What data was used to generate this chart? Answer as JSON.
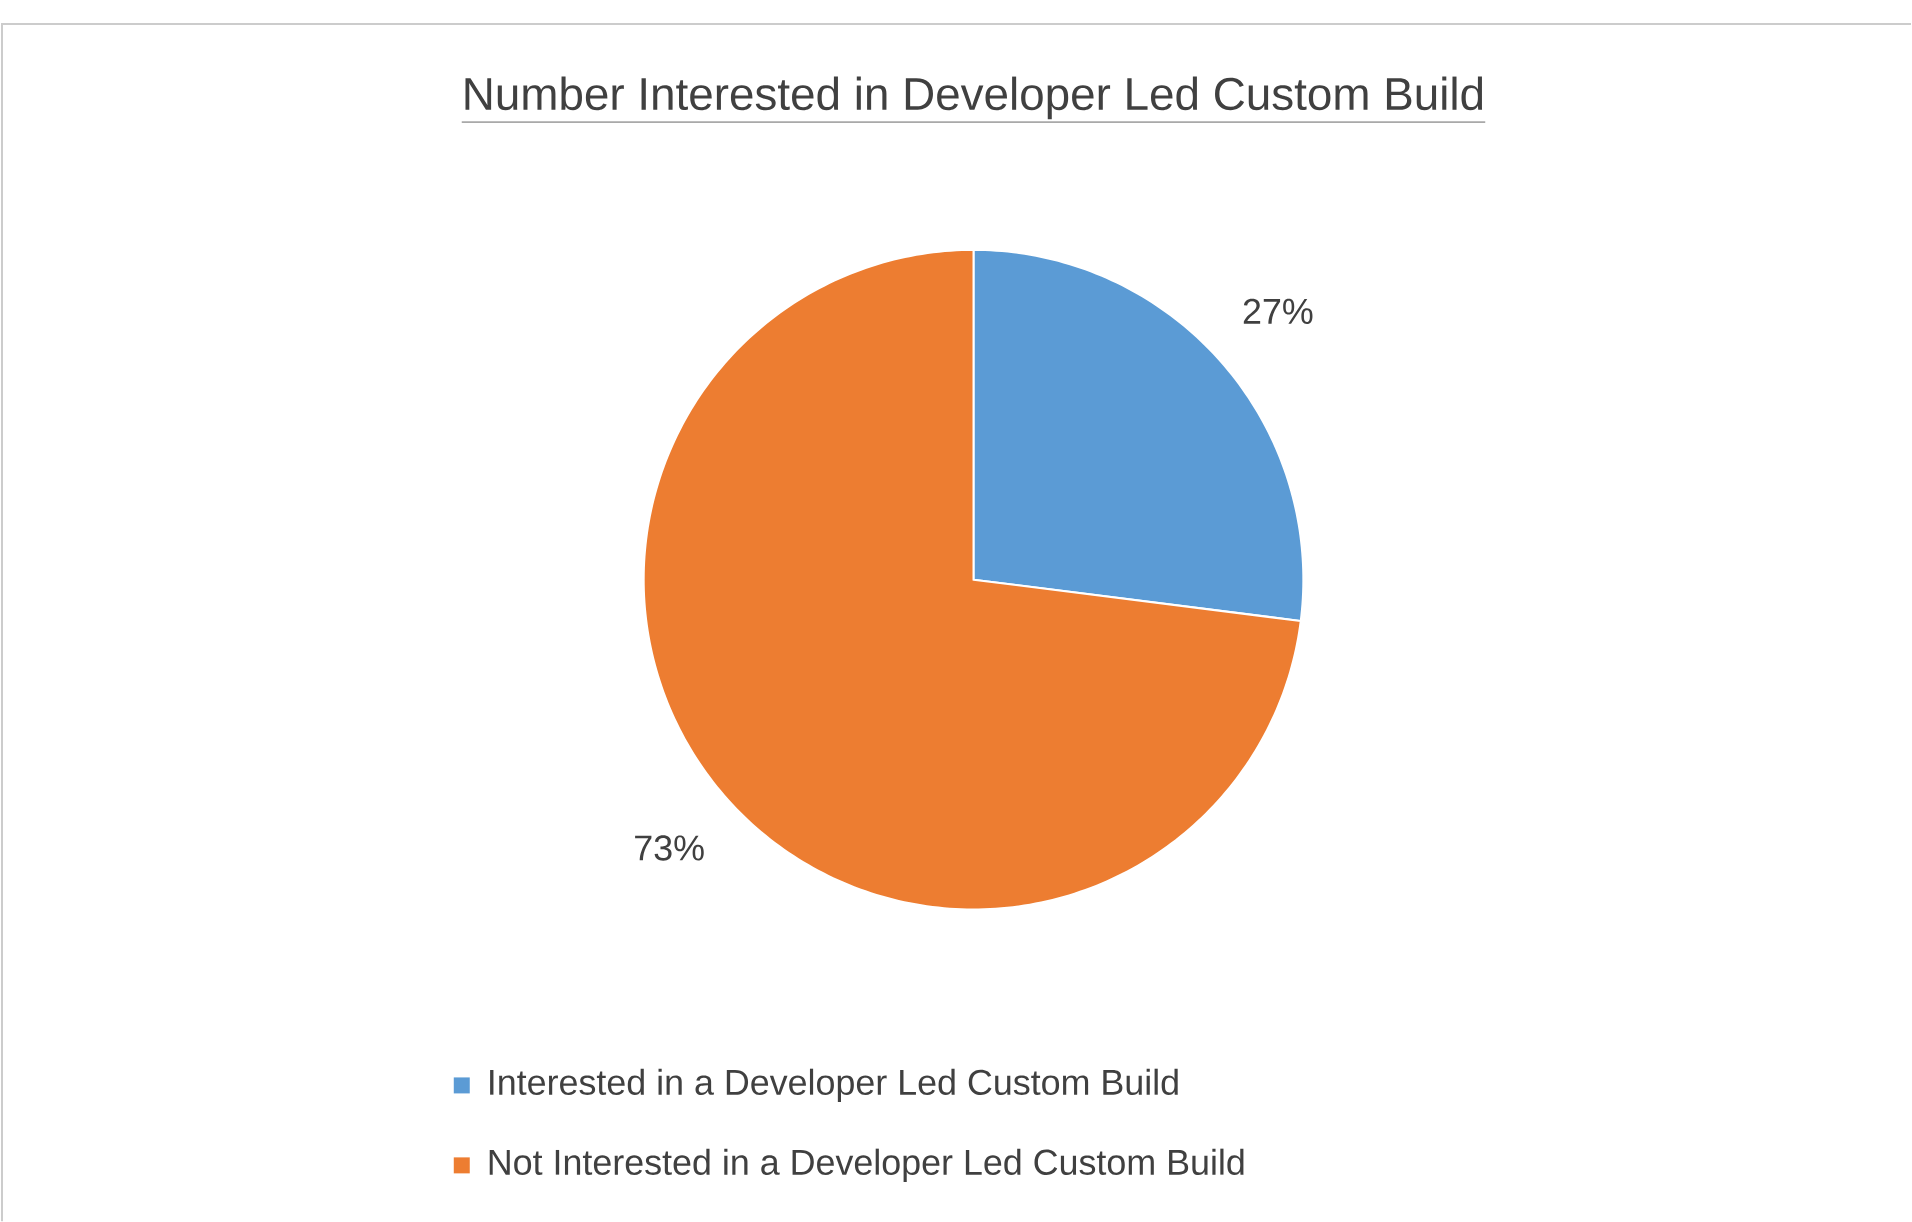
{
  "chart_data": {
    "type": "pie",
    "title": "Number Interested in Developer Led Custom Build",
    "categories": [
      "Interested in a Developer Led Custom Build",
      "Not Interested in a Developer Led Custom Build"
    ],
    "values": [
      27,
      73
    ],
    "colors": [
      "#5b9bd5",
      "#ed7d31"
    ],
    "value_labels": [
      "27%",
      "73%"
    ],
    "legend": "bottom"
  }
}
